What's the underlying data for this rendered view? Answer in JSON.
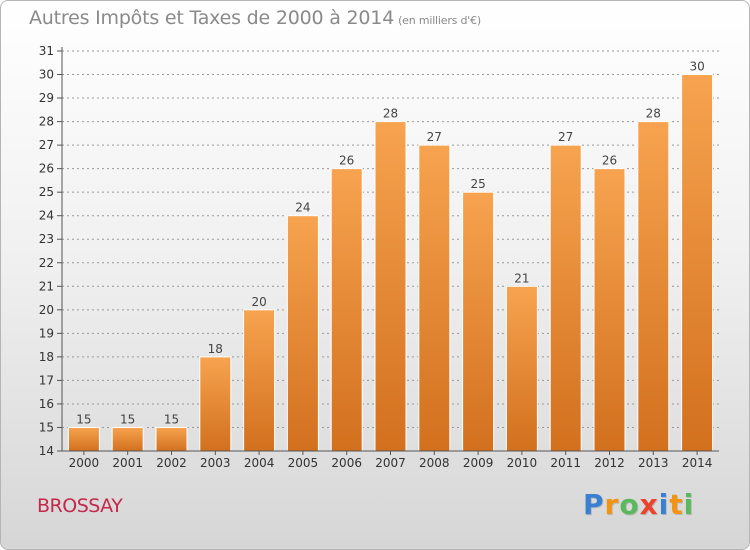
{
  "header": {
    "title": "Autres Impôts et Taxes de 2000 à 2014",
    "subtitle": "(en milliers d'€)"
  },
  "footer": {
    "location": "BROSSAY",
    "logo_letters": [
      "P",
      "r",
      "o",
      "x",
      "i",
      "t",
      "i"
    ],
    "logo_colors": [
      "#3a7fd0",
      "#f29312",
      "#5cb85c",
      "#e8452c",
      "#3a7fd0",
      "#f29312",
      "#5cb85c"
    ]
  },
  "colors": {
    "bar_light": "#f7a34f",
    "bar_dark": "#d2701e",
    "axis": "#555555",
    "grid": "#999999"
  },
  "chart_data": {
    "type": "bar",
    "categories": [
      "2000",
      "2001",
      "2002",
      "2003",
      "2004",
      "2005",
      "2006",
      "2007",
      "2008",
      "2009",
      "2010",
      "2011",
      "2012",
      "2013",
      "2014"
    ],
    "values": [
      15,
      15,
      15,
      18,
      20,
      24,
      26,
      28,
      27,
      25,
      21,
      27,
      26,
      28,
      30
    ],
    "yticks": [
      14,
      15,
      16,
      17,
      18,
      19,
      20,
      21,
      22,
      23,
      24,
      25,
      26,
      27,
      28,
      29,
      30,
      31
    ],
    "ylim": [
      14,
      31
    ],
    "grid": true,
    "data_labels": true,
    "legend": "none"
  }
}
